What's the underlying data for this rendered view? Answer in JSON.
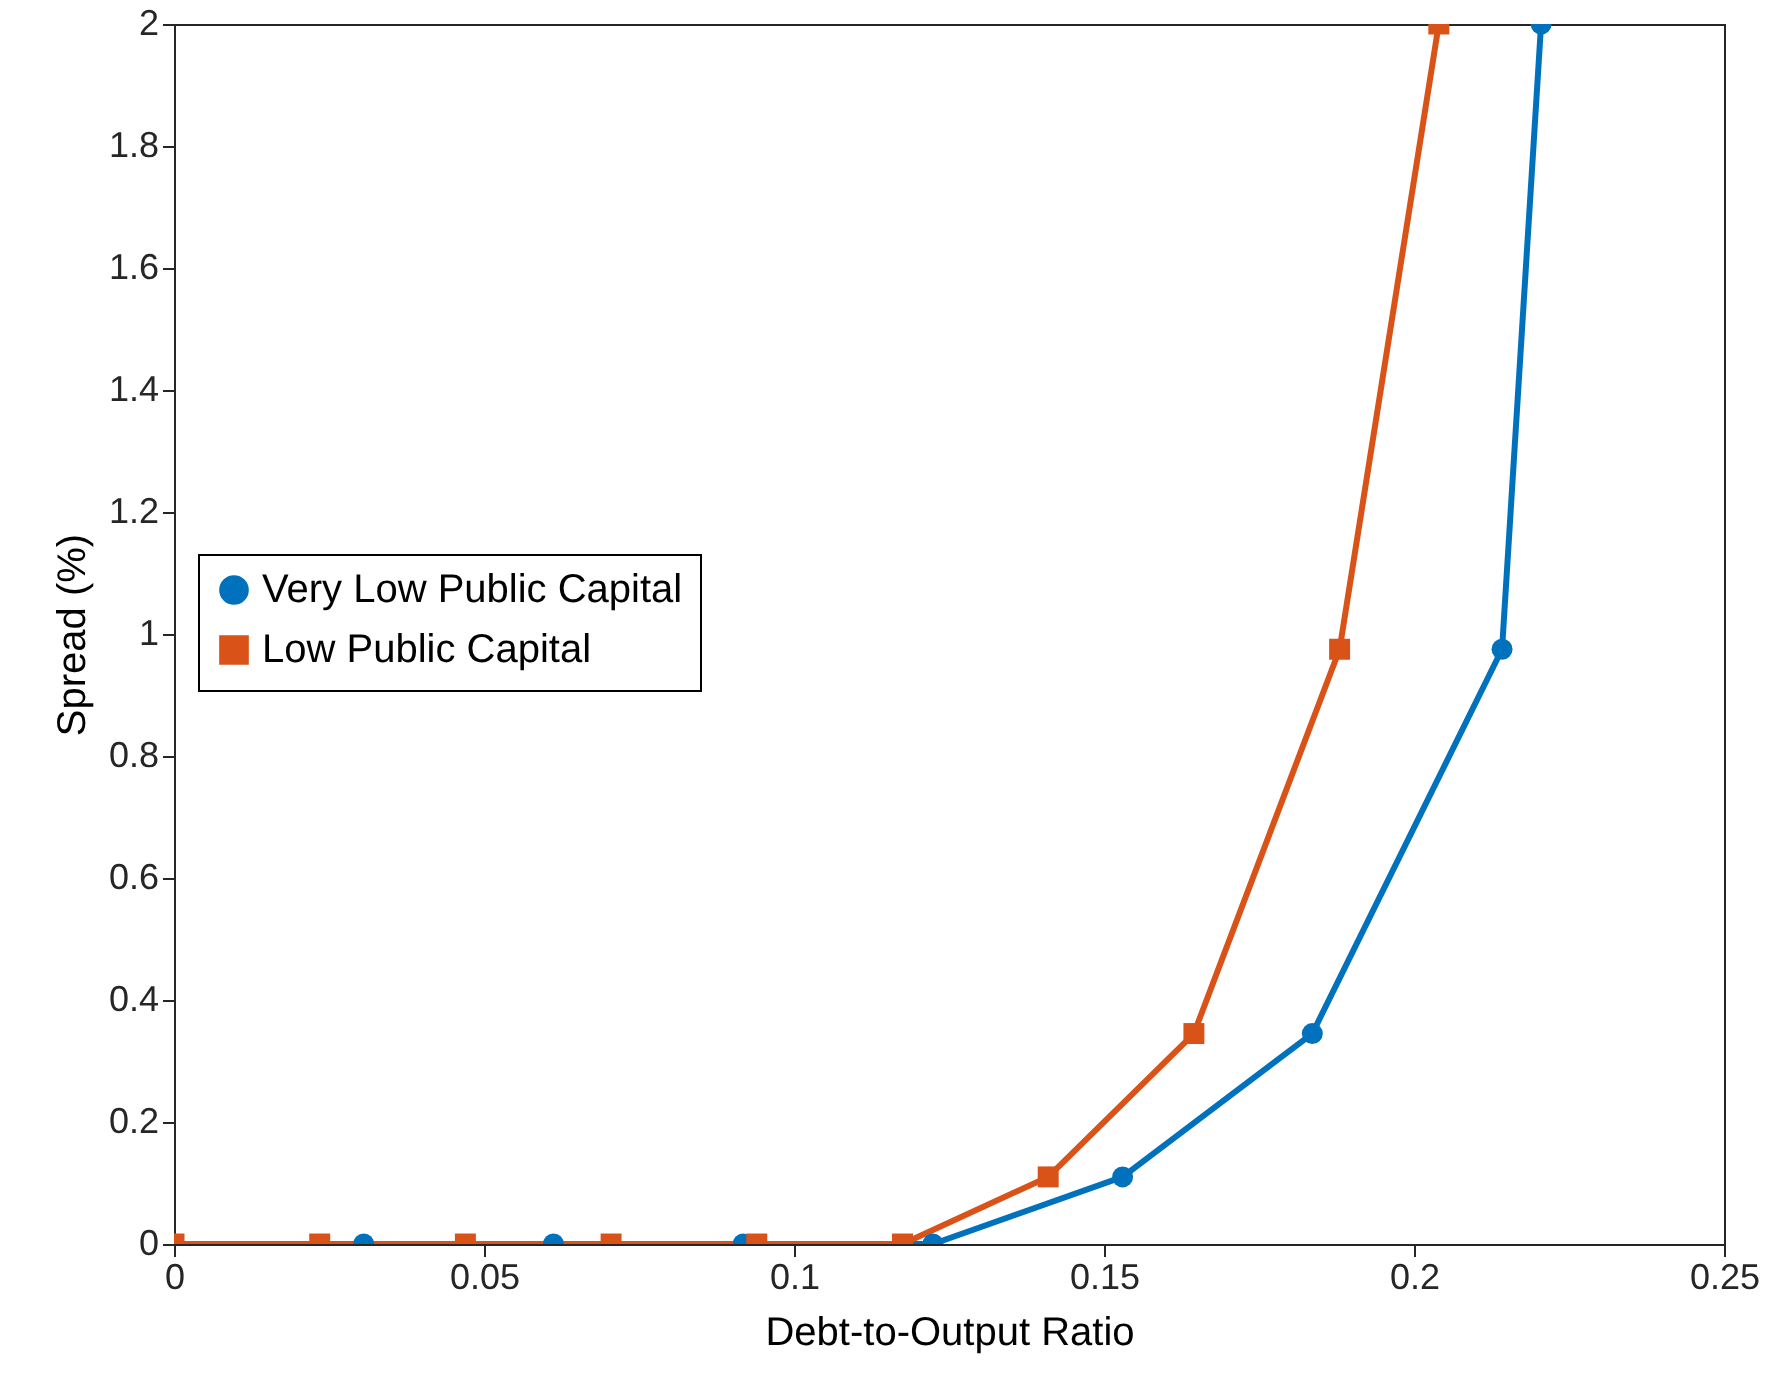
{
  "chart_data": {
    "type": "line",
    "xlabel": "Debt-to-Output Ratio",
    "ylabel": "Spread (%)",
    "xlim": [
      0,
      0.25
    ],
    "ylim": [
      0,
      2
    ],
    "xticks": [
      0,
      0.05,
      0.1,
      0.15,
      0.2,
      0.25
    ],
    "yticks": [
      0,
      0.2,
      0.4,
      0.6,
      0.8,
      1,
      1.2,
      1.4,
      1.6,
      1.8,
      2
    ],
    "grid": false,
    "legend": "left",
    "series": [
      {
        "name": "Very Low Public Capital",
        "color": "#0072bd",
        "marker": "circle",
        "x": [
          0,
          0.0306,
          0.0612,
          0.0918,
          0.1224,
          0.153,
          0.1836,
          0.2142,
          0.2205
        ],
        "values": [
          0,
          0,
          0,
          0,
          0,
          0.11,
          0.345,
          0.975,
          2
        ]
      },
      {
        "name": "Low Public Capital",
        "color": "#d95319",
        "marker": "square",
        "x": [
          0,
          0.0235,
          0.047,
          0.0705,
          0.094,
          0.1175,
          0.141,
          0.1645,
          0.188,
          0.204
        ],
        "values": [
          0,
          0,
          0,
          0,
          0,
          0,
          0.11,
          0.345,
          0.975,
          2
        ]
      }
    ]
  }
}
